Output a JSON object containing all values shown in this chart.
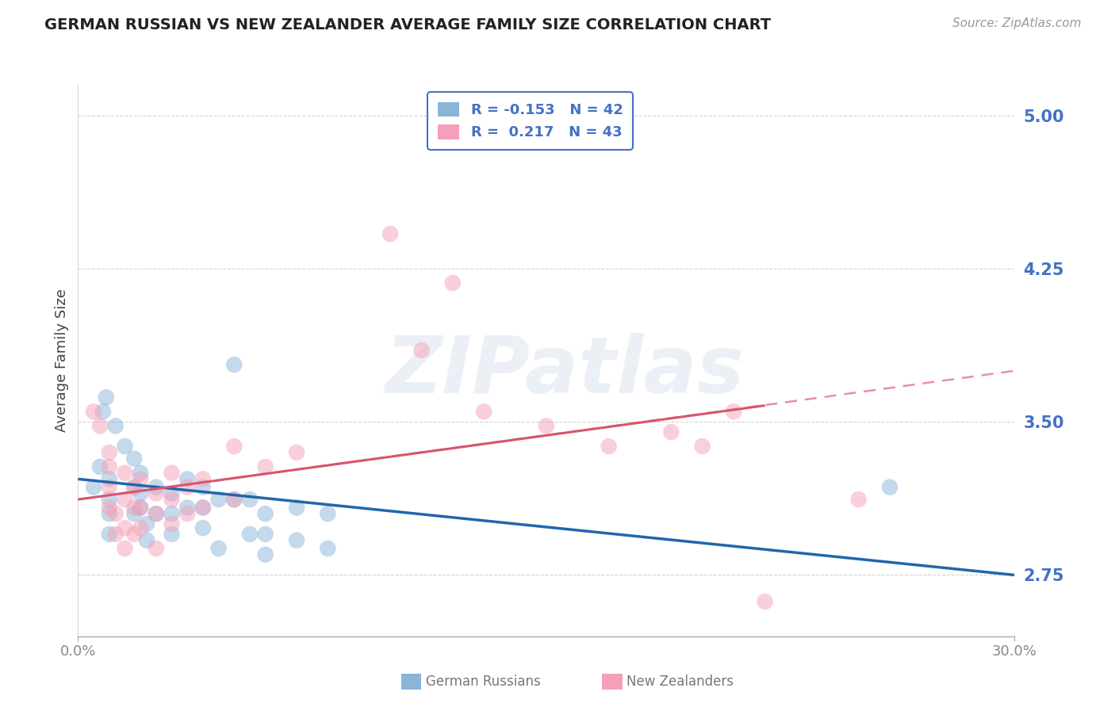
{
  "title": "GERMAN RUSSIAN VS NEW ZEALANDER AVERAGE FAMILY SIZE CORRELATION CHART",
  "source": "Source: ZipAtlas.com",
  "ylabel": "Average Family Size",
  "xlabel": "",
  "xmin": 0.0,
  "xmax": 0.3,
  "ymin": 2.45,
  "ymax": 5.15,
  "yticks": [
    2.75,
    3.5,
    4.25,
    5.0
  ],
  "ytick_labels": [
    "2.75",
    "3.50",
    "4.25",
    "5.00"
  ],
  "xticks": [
    0.0,
    0.3
  ],
  "xtick_labels": [
    "0.0%",
    "30.0%"
  ],
  "color_blue": "#8ab4d8",
  "color_pink": "#f4a0b8",
  "color_blue_line": "#2166ac",
  "color_pink_line_solid": "#d9546e",
  "color_pink_line_dashed": "#e8909f",
  "legend_blue_r": "-0.153",
  "legend_blue_n": "42",
  "legend_pink_r": "0.217",
  "legend_pink_n": "43",
  "blue_points": [
    [
      0.005,
      3.18
    ],
    [
      0.007,
      3.28
    ],
    [
      0.008,
      3.55
    ],
    [
      0.009,
      3.62
    ],
    [
      0.01,
      3.22
    ],
    [
      0.01,
      3.12
    ],
    [
      0.01,
      3.05
    ],
    [
      0.01,
      2.95
    ],
    [
      0.012,
      3.48
    ],
    [
      0.015,
      3.38
    ],
    [
      0.018,
      3.32
    ],
    [
      0.018,
      3.18
    ],
    [
      0.018,
      3.05
    ],
    [
      0.02,
      3.25
    ],
    [
      0.02,
      3.15
    ],
    [
      0.02,
      3.08
    ],
    [
      0.022,
      3.0
    ],
    [
      0.022,
      2.92
    ],
    [
      0.025,
      3.18
    ],
    [
      0.025,
      3.05
    ],
    [
      0.03,
      3.15
    ],
    [
      0.03,
      3.05
    ],
    [
      0.03,
      2.95
    ],
    [
      0.035,
      3.22
    ],
    [
      0.035,
      3.08
    ],
    [
      0.04,
      3.18
    ],
    [
      0.04,
      3.08
    ],
    [
      0.04,
      2.98
    ],
    [
      0.045,
      3.12
    ],
    [
      0.045,
      2.88
    ],
    [
      0.05,
      3.78
    ],
    [
      0.05,
      3.12
    ],
    [
      0.055,
      3.12
    ],
    [
      0.055,
      2.95
    ],
    [
      0.06,
      3.05
    ],
    [
      0.06,
      2.95
    ],
    [
      0.06,
      2.85
    ],
    [
      0.07,
      3.08
    ],
    [
      0.07,
      2.92
    ],
    [
      0.08,
      3.05
    ],
    [
      0.08,
      2.88
    ],
    [
      0.26,
      3.18
    ]
  ],
  "pink_points": [
    [
      0.005,
      3.55
    ],
    [
      0.007,
      3.48
    ],
    [
      0.01,
      3.35
    ],
    [
      0.01,
      3.28
    ],
    [
      0.01,
      3.18
    ],
    [
      0.01,
      3.08
    ],
    [
      0.012,
      3.05
    ],
    [
      0.012,
      2.95
    ],
    [
      0.015,
      3.25
    ],
    [
      0.015,
      3.12
    ],
    [
      0.015,
      2.98
    ],
    [
      0.015,
      2.88
    ],
    [
      0.018,
      3.18
    ],
    [
      0.018,
      3.08
    ],
    [
      0.018,
      2.95
    ],
    [
      0.02,
      3.22
    ],
    [
      0.02,
      3.08
    ],
    [
      0.02,
      2.98
    ],
    [
      0.025,
      3.15
    ],
    [
      0.025,
      3.05
    ],
    [
      0.025,
      2.88
    ],
    [
      0.03,
      3.25
    ],
    [
      0.03,
      3.12
    ],
    [
      0.03,
      3.0
    ],
    [
      0.035,
      3.18
    ],
    [
      0.035,
      3.05
    ],
    [
      0.04,
      3.22
    ],
    [
      0.04,
      3.08
    ],
    [
      0.05,
      3.38
    ],
    [
      0.05,
      3.12
    ],
    [
      0.06,
      3.28
    ],
    [
      0.07,
      3.35
    ],
    [
      0.1,
      4.42
    ],
    [
      0.11,
      3.85
    ],
    [
      0.12,
      4.18
    ],
    [
      0.13,
      3.55
    ],
    [
      0.15,
      3.48
    ],
    [
      0.17,
      3.38
    ],
    [
      0.19,
      3.45
    ],
    [
      0.2,
      3.38
    ],
    [
      0.21,
      3.55
    ],
    [
      0.22,
      2.62
    ],
    [
      0.25,
      3.12
    ]
  ],
  "blue_line_x": [
    0.0,
    0.3
  ],
  "blue_line_y": [
    3.22,
    2.75
  ],
  "pink_solid_line_x": [
    0.0,
    0.22
  ],
  "pink_solid_line_y": [
    3.12,
    3.58
  ],
  "pink_dashed_line_x": [
    0.0,
    0.3
  ],
  "pink_dashed_line_y": [
    3.12,
    3.75
  ],
  "watermark": "ZIPatlas",
  "background_color": "#ffffff",
  "grid_color": "#c8c8c8"
}
